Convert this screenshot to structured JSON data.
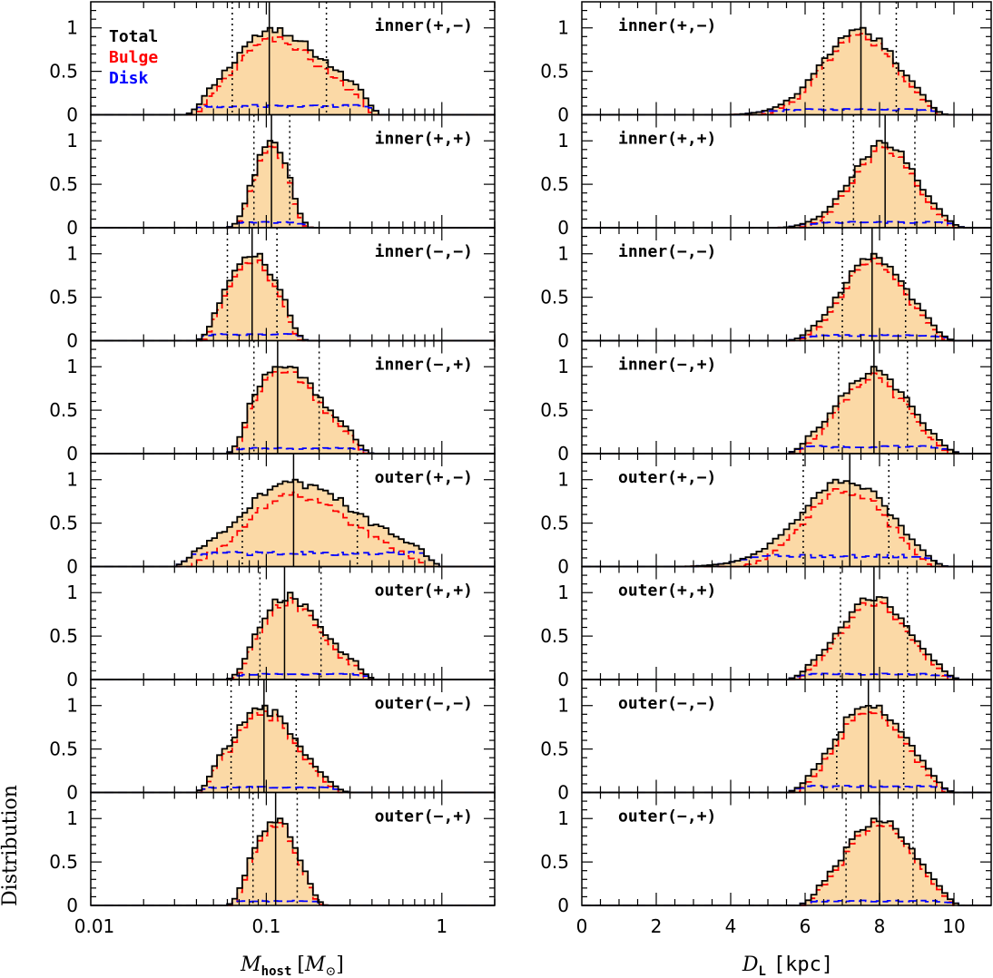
{
  "figure": {
    "ylabel": "Distribution",
    "legend": [
      {
        "label": "Total",
        "color": "#000000"
      },
      {
        "label": "Bulge",
        "color": "#ff0000"
      },
      {
        "label": "Disk",
        "color": "#0000ff"
      }
    ],
    "fill_color": "#fbd9a6"
  },
  "chart_data": [
    {
      "type": "histogram",
      "column": "left",
      "scale": "log",
      "xlabel_main": "M",
      "xlabel_sub": "host",
      "xlabel_unit_main": "M",
      "xlabel_unit_sub": "⊙",
      "xlim": [
        0.01,
        2.0
      ],
      "ylim": [
        0,
        1.3
      ],
      "xticks": [
        0.01,
        0.1,
        1
      ],
      "xtick_labels": [
        "0.01",
        "0.1",
        "1"
      ],
      "yticks": [
        0,
        0.5,
        1
      ],
      "ytick_labels": [
        "0",
        "0.5",
        "1"
      ],
      "panels": [
        {
          "label": "inner(+,−)",
          "median": 0.104,
          "ci": [
            0.064,
            0.22
          ],
          "lo": 0.035,
          "hi": 0.45,
          "total_peak": 1.0,
          "second": {
            "center": 0.27,
            "height": 0.38
          },
          "disk": 0.1,
          "noise": 0.14
        },
        {
          "label": "inner(+,+)",
          "median": 0.107,
          "ci": [
            0.085,
            0.136
          ],
          "lo": 0.06,
          "hi": 0.18,
          "total_peak": 1.0,
          "second": null,
          "disk": 0.06,
          "noise": 0.12
        },
        {
          "label": "inner(−,−)",
          "median": 0.083,
          "ci": [
            0.06,
            0.115
          ],
          "lo": 0.04,
          "hi": 0.17,
          "total_peak": 1.0,
          "second": null,
          "disk": 0.07,
          "noise": 0.14
        },
        {
          "label": "inner(−,+)",
          "median": 0.116,
          "ci": [
            0.085,
            0.2
          ],
          "lo": 0.06,
          "hi": 0.4,
          "total_peak": 1.0,
          "second": {
            "center": 0.24,
            "height": 0.33
          },
          "disk": 0.06,
          "noise": 0.12
        },
        {
          "label": "outer(+,−)",
          "median": 0.143,
          "ci": [
            0.073,
            0.33
          ],
          "lo": 0.03,
          "hi": 1.0,
          "total_peak": 1.0,
          "second": {
            "center": 0.3,
            "height": 0.55
          },
          "disk": 0.15,
          "noise": 0.14
        },
        {
          "label": "outer(+,+)",
          "median": 0.127,
          "ci": [
            0.092,
            0.205
          ],
          "lo": 0.06,
          "hi": 0.42,
          "total_peak": 1.0,
          "second": {
            "center": 0.25,
            "height": 0.33
          },
          "disk": 0.06,
          "noise": 0.12
        },
        {
          "label": "outer(−,−)",
          "median": 0.097,
          "ci": [
            0.063,
            0.148
          ],
          "lo": 0.04,
          "hi": 0.3,
          "total_peak": 1.0,
          "second": null,
          "disk": 0.06,
          "noise": 0.14
        },
        {
          "label": "outer(−,+)",
          "median": 0.113,
          "ci": [
            0.084,
            0.15
          ],
          "lo": 0.06,
          "hi": 0.22,
          "total_peak": 1.0,
          "second": null,
          "disk": 0.05,
          "noise": 0.12
        }
      ]
    },
    {
      "type": "histogram",
      "column": "right",
      "scale": "linear",
      "xlabel_main": "D",
      "xlabel_sub": "L",
      "xlabel_unit": "[kpc]",
      "xlim": [
        0,
        11
      ],
      "ylim": [
        0,
        1.3
      ],
      "xticks": [
        0,
        2,
        4,
        6,
        8,
        10
      ],
      "xtick_labels": [
        "0",
        "2",
        "4",
        "6",
        "8",
        "10"
      ],
      "yticks": [
        0,
        0.5,
        1
      ],
      "ytick_labels": [
        "0",
        "0.5",
        "1"
      ],
      "panels": [
        {
          "label": "inner(+,−)",
          "median": 7.5,
          "ci": [
            6.5,
            8.45
          ],
          "lo": 3.8,
          "hi": 9.8,
          "total_peak": 1.0,
          "disk": 0.06,
          "noise": 0.12
        },
        {
          "label": "inner(+,+)",
          "median": 8.15,
          "ci": [
            7.3,
            8.95
          ],
          "lo": 5.2,
          "hi": 10.3,
          "total_peak": 1.0,
          "disk": 0.06,
          "noise": 0.12
        },
        {
          "label": "inner(−,−)",
          "median": 7.8,
          "ci": [
            7.0,
            8.7
          ],
          "lo": 5.5,
          "hi": 10.0,
          "total_peak": 1.0,
          "disk": 0.06,
          "noise": 0.12
        },
        {
          "label": "inner(−,+)",
          "median": 7.85,
          "ci": [
            6.9,
            8.75
          ],
          "lo": 5.5,
          "hi": 10.2,
          "total_peak": 1.0,
          "disk": 0.08,
          "noise": 0.12
        },
        {
          "label": "outer(+,−)",
          "median": 7.2,
          "ci": [
            5.95,
            8.25
          ],
          "lo": 2.6,
          "hi": 9.8,
          "total_peak": 1.0,
          "disk": 0.12,
          "noise": 0.12
        },
        {
          "label": "outer(+,+)",
          "median": 7.85,
          "ci": [
            6.95,
            8.75
          ],
          "lo": 5.5,
          "hi": 10.2,
          "total_peak": 0.95,
          "disk": 0.06,
          "noise": 0.1
        },
        {
          "label": "outer(−,−)",
          "median": 7.7,
          "ci": [
            6.85,
            8.65
          ],
          "lo": 5.5,
          "hi": 10.0,
          "total_peak": 1.0,
          "disk": 0.07,
          "noise": 0.12
        },
        {
          "label": "outer(−,+)",
          "median": 8.0,
          "ci": [
            7.1,
            8.9
          ],
          "lo": 5.8,
          "hi": 10.2,
          "total_peak": 1.0,
          "disk": 0.05,
          "noise": 0.12
        }
      ]
    }
  ]
}
